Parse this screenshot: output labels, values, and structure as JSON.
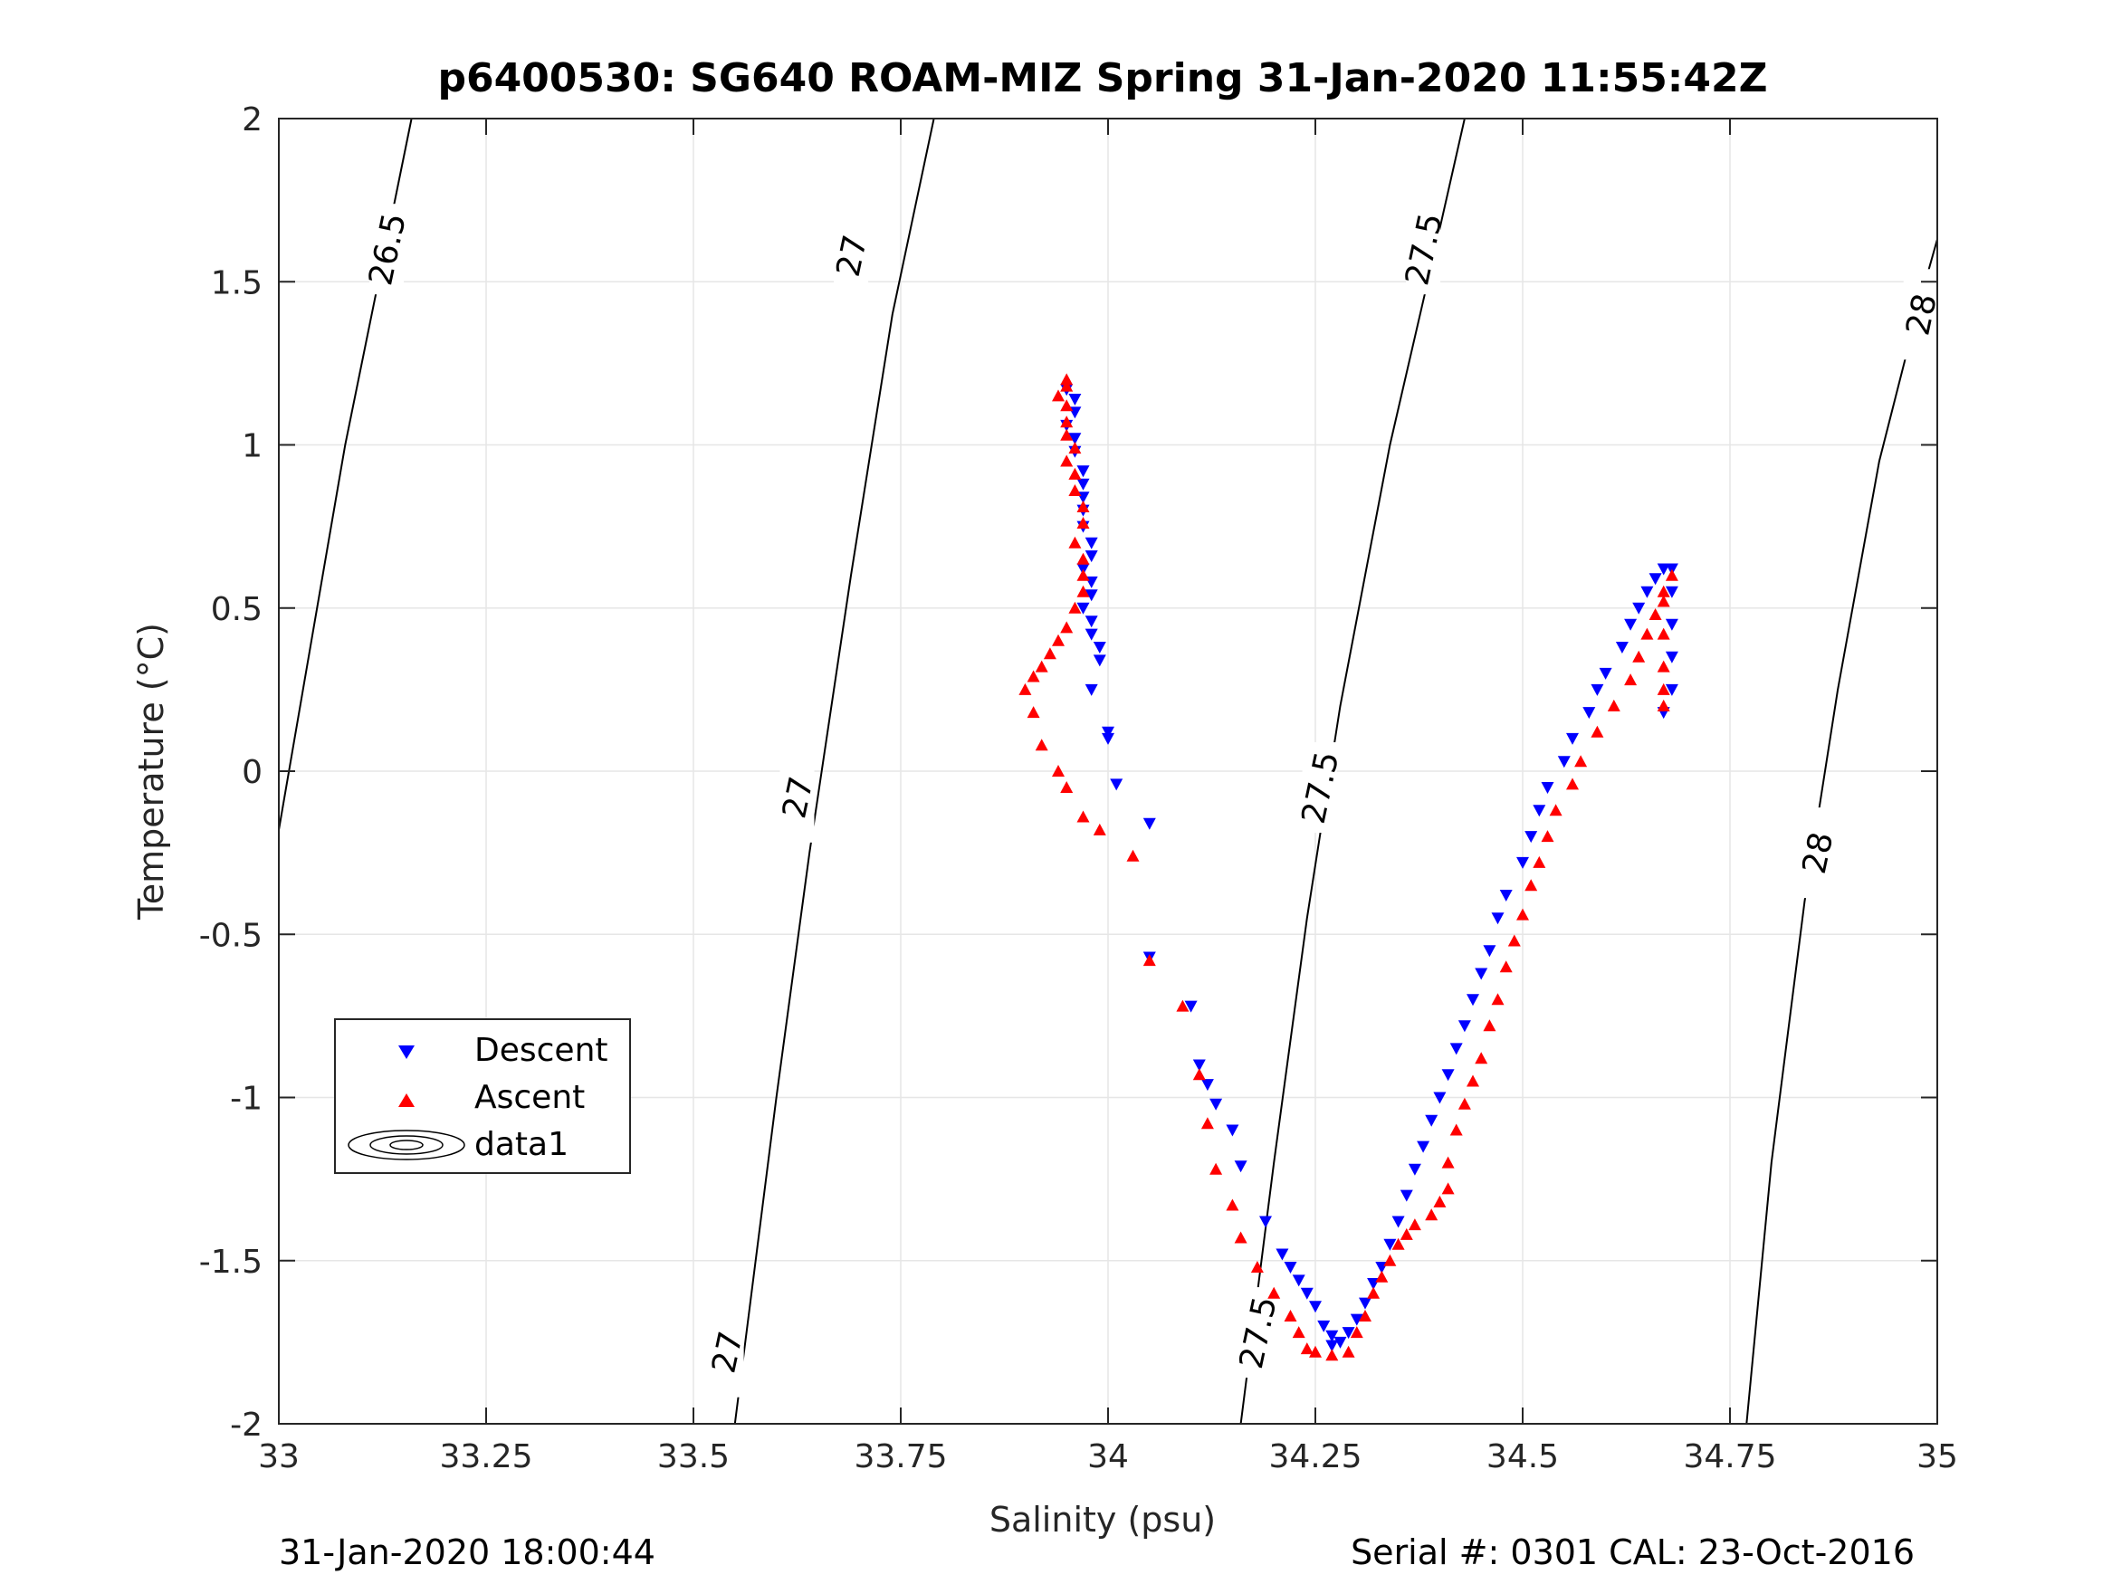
{
  "chart_data": {
    "type": "scatter",
    "title": "p6400530: SG640 ROAM-MIZ Spring 31-Jan-2020 11:55:42Z",
    "xlabel": "Salinity (psu)",
    "ylabel": "Temperature (°C)",
    "xlim": [
      33,
      35
    ],
    "ylim": [
      -2,
      2
    ],
    "x_ticks": [
      33,
      33.25,
      33.5,
      33.75,
      34,
      34.25,
      34.5,
      34.75,
      35
    ],
    "x_tick_labels": [
      "33",
      "33.25",
      "33.5",
      "33.75",
      "34",
      "34.25",
      "34.5",
      "34.75",
      "35"
    ],
    "y_ticks": [
      -2,
      -1.5,
      -1,
      -0.5,
      0,
      0.5,
      1,
      1.5,
      2
    ],
    "y_tick_labels": [
      "-2",
      "-1.5",
      "-1",
      "-0.5",
      "0",
      "0.5",
      "1",
      "1.5",
      "2"
    ],
    "grid": true,
    "legend_position": "lower-left",
    "footer_left": "31-Jan-2020 18:00:44",
    "footer_right": "Serial #: 0301  CAL: 23-Oct-2016",
    "series": [
      {
        "name": "Descent",
        "marker": "triangle-down",
        "color": "#0000ff",
        "points": [
          [
            33.95,
            1.17
          ],
          [
            33.96,
            1.14
          ],
          [
            33.96,
            1.1
          ],
          [
            33.95,
            1.06
          ],
          [
            33.96,
            1.02
          ],
          [
            33.96,
            0.98
          ],
          [
            33.97,
            0.92
          ],
          [
            33.97,
            0.88
          ],
          [
            33.97,
            0.84
          ],
          [
            33.97,
            0.8
          ],
          [
            33.97,
            0.75
          ],
          [
            33.98,
            0.7
          ],
          [
            33.98,
            0.66
          ],
          [
            33.97,
            0.62
          ],
          [
            33.98,
            0.58
          ],
          [
            33.98,
            0.54
          ],
          [
            33.97,
            0.5
          ],
          [
            33.98,
            0.46
          ],
          [
            33.98,
            0.42
          ],
          [
            33.99,
            0.38
          ],
          [
            33.99,
            0.34
          ],
          [
            33.98,
            0.25
          ],
          [
            34.0,
            0.12
          ],
          [
            34.0,
            0.1
          ],
          [
            34.01,
            -0.04
          ],
          [
            34.05,
            -0.16
          ],
          [
            34.05,
            -0.57
          ],
          [
            34.1,
            -0.72
          ],
          [
            34.11,
            -0.9
          ],
          [
            34.12,
            -0.96
          ],
          [
            34.13,
            -1.02
          ],
          [
            34.15,
            -1.1
          ],
          [
            34.16,
            -1.21
          ],
          [
            34.19,
            -1.38
          ],
          [
            34.21,
            -1.48
          ],
          [
            34.22,
            -1.52
          ],
          [
            34.23,
            -1.56
          ],
          [
            34.24,
            -1.6
          ],
          [
            34.25,
            -1.64
          ],
          [
            34.26,
            -1.7
          ],
          [
            34.27,
            -1.73
          ],
          [
            34.27,
            -1.76
          ],
          [
            34.28,
            -1.75
          ],
          [
            34.29,
            -1.72
          ],
          [
            34.3,
            -1.68
          ],
          [
            34.31,
            -1.63
          ],
          [
            34.32,
            -1.57
          ],
          [
            34.33,
            -1.52
          ],
          [
            34.34,
            -1.45
          ],
          [
            34.35,
            -1.38
          ],
          [
            34.36,
            -1.3
          ],
          [
            34.37,
            -1.22
          ],
          [
            34.38,
            -1.15
          ],
          [
            34.39,
            -1.07
          ],
          [
            34.4,
            -1.0
          ],
          [
            34.41,
            -0.93
          ],
          [
            34.42,
            -0.85
          ],
          [
            34.43,
            -0.78
          ],
          [
            34.44,
            -0.7
          ],
          [
            34.45,
            -0.62
          ],
          [
            34.46,
            -0.55
          ],
          [
            34.47,
            -0.45
          ],
          [
            34.48,
            -0.38
          ],
          [
            34.5,
            -0.28
          ],
          [
            34.51,
            -0.2
          ],
          [
            34.52,
            -0.12
          ],
          [
            34.53,
            -0.05
          ],
          [
            34.55,
            0.03
          ],
          [
            34.56,
            0.1
          ],
          [
            34.58,
            0.18
          ],
          [
            34.59,
            0.25
          ],
          [
            34.6,
            0.3
          ],
          [
            34.62,
            0.38
          ],
          [
            34.63,
            0.45
          ],
          [
            34.64,
            0.5
          ],
          [
            34.65,
            0.55
          ],
          [
            34.66,
            0.59
          ],
          [
            34.67,
            0.62
          ],
          [
            34.68,
            0.62
          ],
          [
            34.68,
            0.55
          ],
          [
            34.68,
            0.45
          ],
          [
            34.68,
            0.35
          ],
          [
            34.68,
            0.25
          ],
          [
            34.67,
            0.18
          ]
        ]
      },
      {
        "name": "Ascent",
        "marker": "triangle-up",
        "color": "#ff0000",
        "points": [
          [
            33.95,
            1.2
          ],
          [
            33.95,
            1.18
          ],
          [
            33.94,
            1.15
          ],
          [
            33.95,
            1.12
          ],
          [
            33.95,
            1.07
          ],
          [
            33.95,
            1.03
          ],
          [
            33.96,
            0.99
          ],
          [
            33.95,
            0.95
          ],
          [
            33.96,
            0.91
          ],
          [
            33.96,
            0.86
          ],
          [
            33.97,
            0.81
          ],
          [
            33.97,
            0.76
          ],
          [
            33.96,
            0.7
          ],
          [
            33.97,
            0.65
          ],
          [
            33.97,
            0.6
          ],
          [
            33.97,
            0.55
          ],
          [
            33.96,
            0.5
          ],
          [
            33.95,
            0.44
          ],
          [
            33.94,
            0.4
          ],
          [
            33.93,
            0.36
          ],
          [
            33.92,
            0.32
          ],
          [
            33.91,
            0.29
          ],
          [
            33.9,
            0.25
          ],
          [
            33.91,
            0.18
          ],
          [
            33.92,
            0.08
          ],
          [
            33.94,
            0.0
          ],
          [
            33.95,
            -0.05
          ],
          [
            33.97,
            -0.14
          ],
          [
            33.99,
            -0.18
          ],
          [
            34.03,
            -0.26
          ],
          [
            34.05,
            -0.58
          ],
          [
            34.09,
            -0.72
          ],
          [
            34.11,
            -0.93
          ],
          [
            34.12,
            -1.08
          ],
          [
            34.13,
            -1.22
          ],
          [
            34.15,
            -1.33
          ],
          [
            34.16,
            -1.43
          ],
          [
            34.18,
            -1.52
          ],
          [
            34.2,
            -1.6
          ],
          [
            34.22,
            -1.67
          ],
          [
            34.23,
            -1.72
          ],
          [
            34.24,
            -1.77
          ],
          [
            34.25,
            -1.78
          ],
          [
            34.27,
            -1.79
          ],
          [
            34.29,
            -1.78
          ],
          [
            34.3,
            -1.72
          ],
          [
            34.31,
            -1.67
          ],
          [
            34.32,
            -1.6
          ],
          [
            34.33,
            -1.55
          ],
          [
            34.34,
            -1.5
          ],
          [
            34.35,
            -1.45
          ],
          [
            34.36,
            -1.42
          ],
          [
            34.37,
            -1.39
          ],
          [
            34.39,
            -1.36
          ],
          [
            34.4,
            -1.32
          ],
          [
            34.41,
            -1.28
          ],
          [
            34.41,
            -1.2
          ],
          [
            34.42,
            -1.1
          ],
          [
            34.43,
            -1.02
          ],
          [
            34.44,
            -0.95
          ],
          [
            34.45,
            -0.88
          ],
          [
            34.46,
            -0.78
          ],
          [
            34.47,
            -0.7
          ],
          [
            34.48,
            -0.6
          ],
          [
            34.49,
            -0.52
          ],
          [
            34.5,
            -0.44
          ],
          [
            34.51,
            -0.35
          ],
          [
            34.52,
            -0.28
          ],
          [
            34.53,
            -0.2
          ],
          [
            34.54,
            -0.12
          ],
          [
            34.56,
            -0.04
          ],
          [
            34.57,
            0.03
          ],
          [
            34.59,
            0.12
          ],
          [
            34.61,
            0.2
          ],
          [
            34.63,
            0.28
          ],
          [
            34.64,
            0.35
          ],
          [
            34.65,
            0.42
          ],
          [
            34.66,
            0.48
          ],
          [
            34.67,
            0.55
          ],
          [
            34.68,
            0.6
          ],
          [
            34.67,
            0.52
          ],
          [
            34.67,
            0.42
          ],
          [
            34.67,
            0.32
          ],
          [
            34.67,
            0.25
          ],
          [
            34.67,
            0.2
          ]
        ]
      }
    ],
    "contour_legend_name": "data1",
    "contours": [
      {
        "level": "26.5",
        "points": [
          [
            33.0,
            -0.18
          ],
          [
            33.08,
            1.0
          ],
          [
            33.16,
            2.0
          ]
        ],
        "labels": [
          {
            "text": "26.5",
            "s": 33.13,
            "t": 1.6
          }
        ]
      },
      {
        "level": "27",
        "points": [
          [
            33.55,
            -2.0
          ],
          [
            33.6,
            -1.0
          ],
          [
            33.64,
            -0.25
          ],
          [
            33.69,
            0.6
          ],
          [
            33.74,
            1.4
          ],
          [
            33.79,
            2.0
          ]
        ],
        "labels": [
          {
            "text": "27",
            "s": 33.69,
            "t": 1.58
          },
          {
            "text": "27",
            "s": 33.625,
            "t": -0.08
          },
          {
            "text": "27",
            "s": 33.54,
            "t": -1.78
          }
        ]
      },
      {
        "level": "27.5",
        "points": [
          [
            34.16,
            -2.0
          ],
          [
            34.2,
            -1.2
          ],
          [
            34.24,
            -0.45
          ],
          [
            34.28,
            0.2
          ],
          [
            34.34,
            1.0
          ],
          [
            34.39,
            1.55
          ],
          [
            34.43,
            2.0
          ]
        ],
        "labels": [
          {
            "text": "27.5",
            "s": 34.38,
            "t": 1.6
          },
          {
            "text": "27.5",
            "s": 34.255,
            "t": -0.05
          },
          {
            "text": "27.5",
            "s": 34.18,
            "t": -1.72
          }
        ]
      },
      {
        "level": "28",
        "points": [
          [
            34.77,
            -2.0
          ],
          [
            34.8,
            -1.2
          ],
          [
            34.84,
            -0.4
          ],
          [
            34.88,
            0.25
          ],
          [
            34.93,
            0.95
          ],
          [
            34.98,
            1.45
          ],
          [
            35.0,
            1.63
          ]
        ],
        "labels": [
          {
            "text": "28",
            "s": 34.98,
            "t": 1.4
          },
          {
            "text": "28",
            "s": 34.855,
            "t": -0.25
          }
        ]
      }
    ]
  }
}
